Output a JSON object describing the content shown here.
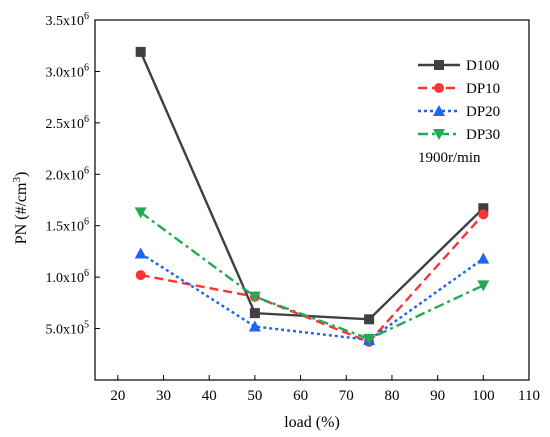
{
  "chart_data": {
    "type": "line",
    "xlabel": "load (%)",
    "ylabel_main": "PN (#/cm",
    "ylabel_sup": "3",
    "ylabel_tail": ")",
    "xlim": [
      15,
      110
    ],
    "ylim": [
      0,
      3500000
    ],
    "x_ticks": [
      20,
      30,
      40,
      50,
      60,
      70,
      80,
      90,
      100,
      110
    ],
    "y_ticks": [
      {
        "value": 500000,
        "mantissa": "5.0x10",
        "exp": "5"
      },
      {
        "value": 1000000,
        "mantissa": "1.0x10",
        "exp": "6"
      },
      {
        "value": 1500000,
        "mantissa": "1.5x10",
        "exp": "6"
      },
      {
        "value": 2000000,
        "mantissa": "2.0x10",
        "exp": "6"
      },
      {
        "value": 2500000,
        "mantissa": "2.5x10",
        "exp": "6"
      },
      {
        "value": 3000000,
        "mantissa": "3.0x10",
        "exp": "6"
      },
      {
        "value": 3500000,
        "mantissa": "3.5x10",
        "exp": "6"
      }
    ],
    "x": [
      25,
      50,
      75,
      100
    ],
    "series": [
      {
        "name": "D100",
        "values": [
          3190000,
          650000,
          590000,
          1670000
        ],
        "color": "#404040",
        "dash": "solid",
        "marker": "square"
      },
      {
        "name": "DP10",
        "values": [
          1020000,
          810000,
          370000,
          1610000
        ],
        "color": "#ff3333",
        "dash": "dash",
        "marker": "circle"
      },
      {
        "name": "DP20",
        "values": [
          1230000,
          520000,
          390000,
          1180000
        ],
        "color": "#1a66ee",
        "dash": "dot",
        "marker": "triangle-up"
      },
      {
        "name": "DP30",
        "values": [
          1630000,
          810000,
          400000,
          920000
        ],
        "color": "#22aa55",
        "dash": "dashdot",
        "marker": "triangle-down"
      }
    ],
    "legend_position": "top-right",
    "annotation": "1900r/min"
  }
}
